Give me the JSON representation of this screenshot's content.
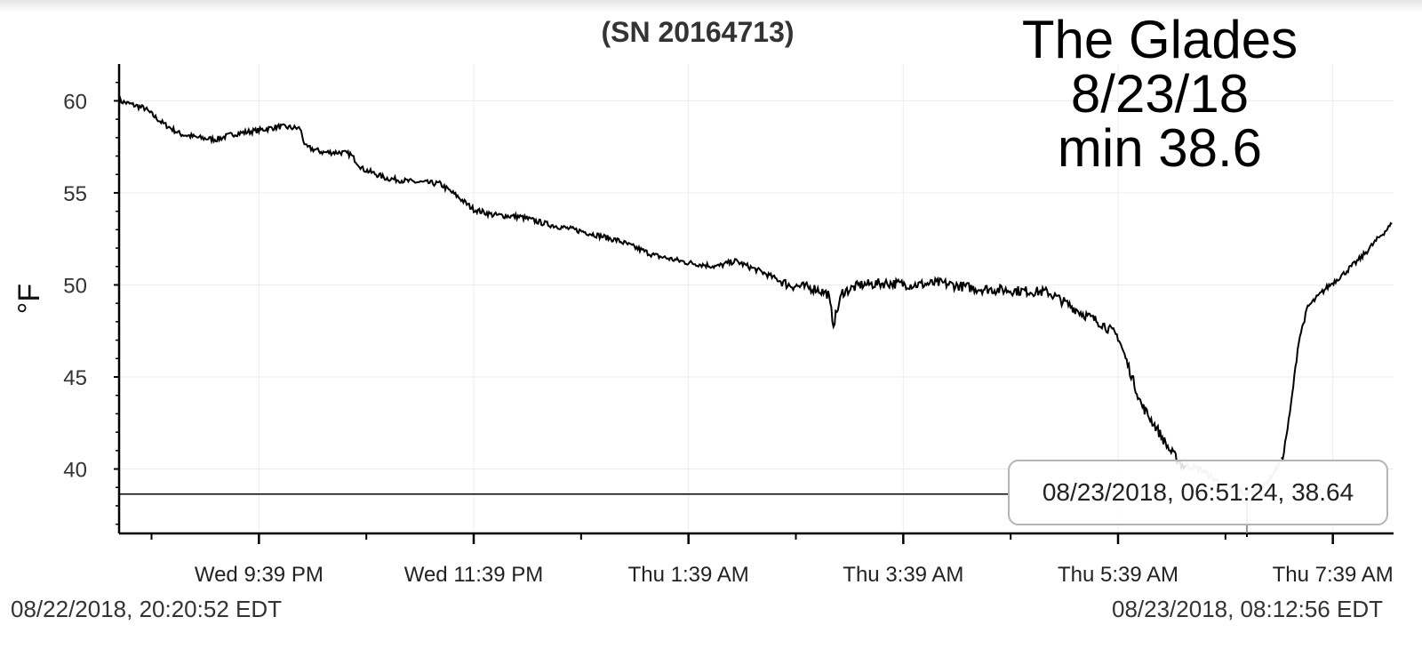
{
  "chart_data": {
    "type": "line",
    "title": "(SN 20164713)",
    "annotation": [
      "The Glades",
      "8/23/18",
      "min 38.6"
    ],
    "ylabel": "°F",
    "xlabel": "",
    "ylim": [
      36.5,
      62
    ],
    "yticks": [
      40,
      45,
      50,
      55,
      60
    ],
    "x_start": "08/22/2018, 20:20:52 EDT",
    "x_end": "08/23/2018, 08:12:56 EDT",
    "xticks": [
      "Wed 9:39 PM",
      "Wed 11:39 PM",
      "Thu 1:39 AM",
      "Thu 3:39 AM",
      "Thu 5:39 AM",
      "Thu 7:39 AM"
    ],
    "grid": true,
    "series": [
      {
        "points": [
          [
            "20:21",
            60.0
          ],
          [
            "20:35",
            59.6
          ],
          [
            "20:45",
            58.8
          ],
          [
            "20:55",
            58.2
          ],
          [
            "21:05",
            58.0
          ],
          [
            "21:15",
            57.9
          ],
          [
            "21:25",
            58.2
          ],
          [
            "21:39",
            58.4
          ],
          [
            "21:50",
            58.6
          ],
          [
            "22:02",
            58.5
          ],
          [
            "22:05",
            57.5
          ],
          [
            "22:15",
            57.2
          ],
          [
            "22:25",
            57.2
          ],
          [
            "22:30",
            57.1
          ],
          [
            "22:37",
            56.3
          ],
          [
            "22:50",
            55.8
          ],
          [
            "23:05",
            55.6
          ],
          [
            "23:20",
            55.5
          ],
          [
            "23:30",
            54.8
          ],
          [
            "23:39",
            54.1
          ],
          [
            "23:50",
            53.8
          ],
          [
            "00:05",
            53.7
          ],
          [
            "00:20",
            53.3
          ],
          [
            "00:40",
            52.9
          ],
          [
            "01:00",
            52.4
          ],
          [
            "01:20",
            51.6
          ],
          [
            "01:39",
            51.2
          ],
          [
            "01:55",
            51.0
          ],
          [
            "02:05",
            51.3
          ],
          [
            "02:20",
            50.7
          ],
          [
            "02:35",
            50.0
          ],
          [
            "02:50",
            49.8
          ],
          [
            "02:57",
            49.5
          ],
          [
            "03:00",
            47.9
          ],
          [
            "03:05",
            49.6
          ],
          [
            "03:15",
            50.0
          ],
          [
            "03:30",
            50.1
          ],
          [
            "03:45",
            50.0
          ],
          [
            "04:00",
            50.1
          ],
          [
            "04:20",
            49.8
          ],
          [
            "04:40",
            49.7
          ],
          [
            "05:00",
            49.6
          ],
          [
            "05:10",
            49.0
          ],
          [
            "05:20",
            48.4
          ],
          [
            "05:30",
            47.9
          ],
          [
            "05:39",
            47.2
          ],
          [
            "05:45",
            45.5
          ],
          [
            "05:52",
            43.5
          ],
          [
            "06:00",
            42.3
          ],
          [
            "06:08",
            41.0
          ],
          [
            "06:15",
            40.2
          ],
          [
            "06:25",
            40.0
          ],
          [
            "06:35",
            39.3
          ],
          [
            "06:45",
            38.9
          ],
          [
            "06:51",
            38.64
          ],
          [
            "07:00",
            39.0
          ],
          [
            "07:06",
            39.8
          ],
          [
            "07:11",
            40.6
          ],
          [
            "07:15",
            43.0
          ],
          [
            "07:20",
            47.0
          ],
          [
            "07:25",
            48.8
          ],
          [
            "07:35",
            49.8
          ],
          [
            "07:45",
            50.6
          ],
          [
            "07:55",
            51.5
          ],
          [
            "08:05",
            52.6
          ],
          [
            "08:12",
            53.3
          ]
        ]
      }
    ],
    "highlight_range": [
      "06:17",
      "07:10"
    ],
    "cursor": {
      "label": "08/23/2018, 06:51:24, 38.64",
      "x": "06:51",
      "y": 38.64
    },
    "colors": {
      "line": "#000000",
      "highlight": "#a0a0a0",
      "grid": "#ececec"
    }
  }
}
